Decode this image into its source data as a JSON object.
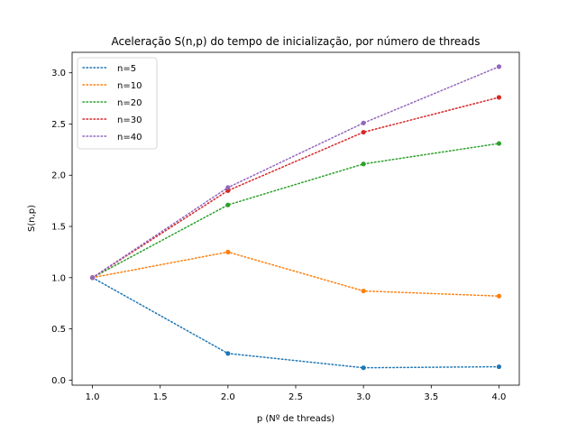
{
  "chart_data": {
    "type": "line",
    "title": "Aceleração S(n,p) do tempo de inicialização, por número de threads",
    "xlabel": "p (Nº de threads)",
    "ylabel": "S(n,p)",
    "x": [
      1,
      2,
      3,
      4
    ],
    "xlim": [
      0.85,
      4.15
    ],
    "ylim": [
      -0.05,
      3.2
    ],
    "xticks": [
      "1.0",
      "1.5",
      "2.0",
      "2.5",
      "3.0",
      "3.5",
      "4.0"
    ],
    "yticks": [
      "0.0",
      "0.5",
      "1.0",
      "1.5",
      "2.0",
      "2.5",
      "3.0"
    ],
    "grid": false,
    "legend_position": "top-left",
    "line_style": "dotted",
    "markers": "circle",
    "series": [
      {
        "name": "n=5",
        "color": "#1f77b4",
        "values": [
          1.0,
          0.26,
          0.12,
          0.13
        ]
      },
      {
        "name": "n=10",
        "color": "#ff7f0e",
        "values": [
          1.0,
          1.25,
          0.87,
          0.82
        ]
      },
      {
        "name": "n=20",
        "color": "#2ca02c",
        "values": [
          1.0,
          1.71,
          2.11,
          2.31
        ]
      },
      {
        "name": "n=30",
        "color": "#d62728",
        "values": [
          1.0,
          1.85,
          2.42,
          2.76
        ]
      },
      {
        "name": "n=40",
        "color": "#9467bd",
        "values": [
          1.0,
          1.88,
          2.51,
          3.06
        ]
      }
    ]
  }
}
